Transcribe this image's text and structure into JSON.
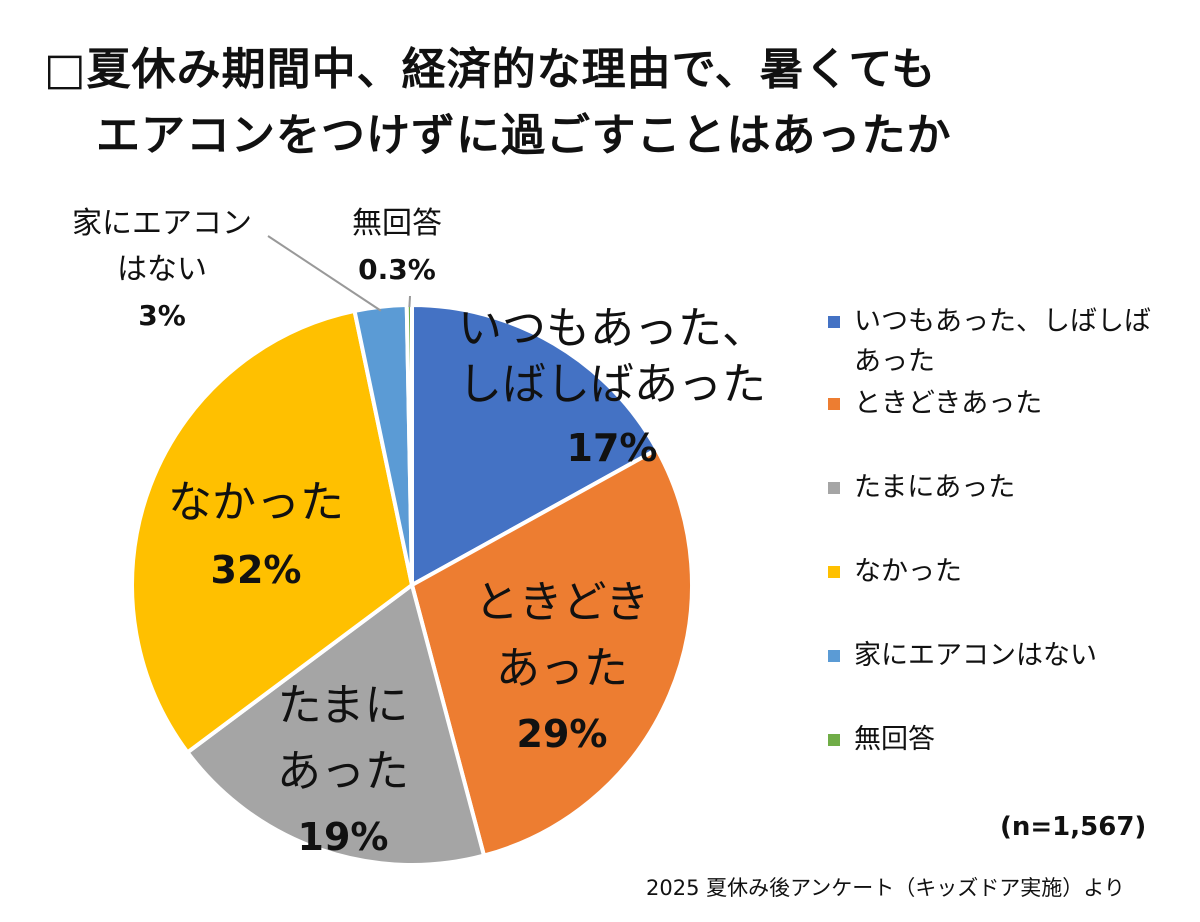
{
  "title": {
    "line1": "□夏休み期間中、経済的な理由で、暑くても",
    "line2": "エアコンをつけずに過ごすことはあったか"
  },
  "chart_data": {
    "type": "pie",
    "slices": [
      {
        "name": "いつもあった、しばしばあった",
        "value": 17,
        "label": "17%",
        "color": "#4472C4"
      },
      {
        "name": "ときどきあった",
        "value": 29,
        "label": "29%",
        "color": "#ED7D31"
      },
      {
        "name": "たまにあった",
        "value": 19,
        "label": "19%",
        "color": "#A5A5A5"
      },
      {
        "name": "なかった",
        "value": 32,
        "label": "32%",
        "color": "#FFC000"
      },
      {
        "name": "家にエアコンはない",
        "value": 3,
        "label": "3%",
        "color": "#5B9BD5"
      },
      {
        "name": "無回答",
        "value": 0.3,
        "label": "0.3%",
        "color": "#70AD47"
      }
    ],
    "slice_labels": [
      {
        "lines": [
          "いつもあった、",
          "しばしばあった"
        ],
        "pct": "17%"
      },
      {
        "lines": [
          "ときどき",
          "あった"
        ],
        "pct": "29%"
      },
      {
        "lines": [
          "たまに",
          "あった"
        ],
        "pct": "19%"
      },
      {
        "lines": [
          "なかった"
        ],
        "pct": "32%"
      },
      {
        "lines": [
          "家にエアコン",
          "はない"
        ],
        "pct": "3%"
      },
      {
        "lines": [
          "無回答"
        ],
        "pct": "0.3%"
      }
    ],
    "legend_position": "right"
  },
  "legend": [
    {
      "label": "いつもあった、しばしば",
      "label2": "あった",
      "color": "#4472C4"
    },
    {
      "label": "ときどきあった",
      "color": "#ED7D31"
    },
    {
      "label": "たまにあった",
      "color": "#A5A5A5"
    },
    {
      "label": "なかった",
      "color": "#FFC000"
    },
    {
      "label": "家にエアコンはない",
      "color": "#5B9BD5"
    },
    {
      "label": "無回答",
      "color": "#70AD47"
    }
  ],
  "sample_size": "(n=1,567)",
  "source": "2025 夏休み後アンケート（キッズドア実施）より"
}
